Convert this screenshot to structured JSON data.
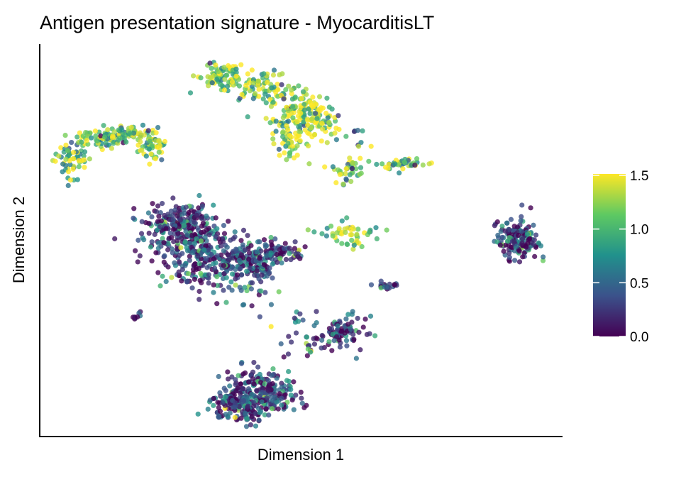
{
  "chart_data": {
    "type": "scatter",
    "title": "Antigen presentation signature - MyocarditisLT",
    "xlabel": "Dimension 1",
    "ylabel": "Dimension 2",
    "xlim": [
      -10,
      10
    ],
    "ylim": [
      -10,
      10
    ],
    "grid": false,
    "colorbar": {
      "colormap": "viridis",
      "range": [
        0,
        1.5
      ],
      "ticks": [
        "0.0",
        "0.5",
        "1.0",
        "1.5"
      ],
      "placement": "right",
      "colors": [
        "#440154",
        "#3b528b",
        "#21918c",
        "#5ec962",
        "#fde725"
      ]
    },
    "clusters": [
      {
        "x": -8.8,
        "y": 4.1,
        "sdx": 0.35,
        "sdy": 0.5,
        "n": 60,
        "mean": 1.1
      },
      {
        "x": -7.7,
        "y": 5.2,
        "sdx": 0.5,
        "sdy": 0.25,
        "n": 60,
        "mean": 1.1
      },
      {
        "x": -6.5,
        "y": 5.4,
        "sdx": 0.5,
        "sdy": 0.2,
        "n": 60,
        "mean": 1.1
      },
      {
        "x": -5.7,
        "y": 4.8,
        "sdx": 0.25,
        "sdy": 0.35,
        "n": 50,
        "mean": 1.2
      },
      {
        "x": -3.1,
        "y": 8.4,
        "sdx": 0.5,
        "sdy": 0.35,
        "n": 80,
        "mean": 1.2
      },
      {
        "x": -1.7,
        "y": 7.9,
        "sdx": 0.6,
        "sdy": 0.4,
        "n": 80,
        "mean": 1.2
      },
      {
        "x": -0.1,
        "y": 6.8,
        "sdx": 0.5,
        "sdy": 0.5,
        "n": 100,
        "mean": 1.3
      },
      {
        "x": -0.4,
        "y": 5.2,
        "sdx": 0.35,
        "sdy": 0.6,
        "n": 70,
        "mean": 1.1
      },
      {
        "x": 0.7,
        "y": 6.1,
        "sdx": 0.35,
        "sdy": 0.5,
        "n": 60,
        "mean": 1.3
      },
      {
        "x": 1.8,
        "y": 3.6,
        "sdx": 0.3,
        "sdy": 0.35,
        "n": 40,
        "mean": 1.1
      },
      {
        "x": 4.0,
        "y": 3.9,
        "sdx": 0.55,
        "sdy": 0.15,
        "n": 40,
        "mean": 1.0
      },
      {
        "x": 2.2,
        "y": 5.2,
        "sdx": 0.3,
        "sdy": 0.3,
        "n": 10,
        "mean": 0.8
      },
      {
        "x": -4.5,
        "y": -0.05,
        "sdx": 0.7,
        "sdy": 0.8,
        "n": 170,
        "mean": 0.3
      },
      {
        "x": -3.6,
        "y": -1.1,
        "sdx": 0.7,
        "sdy": 0.8,
        "n": 170,
        "mean": 0.3
      },
      {
        "x": -2.0,
        "y": -1.1,
        "sdx": 0.6,
        "sdy": 0.6,
        "n": 140,
        "mean": 0.35
      },
      {
        "x": -0.9,
        "y": -0.6,
        "sdx": 0.5,
        "sdy": 0.3,
        "n": 80,
        "mean": 0.3
      },
      {
        "x": -4.7,
        "y": 1.0,
        "sdx": 0.7,
        "sdy": 0.4,
        "n": 120,
        "mean": 0.25
      },
      {
        "x": -1.7,
        "y": -3.0,
        "sdx": 0.5,
        "sdy": 0.4,
        "n": 15,
        "mean": 0.5
      },
      {
        "x": -0.1,
        "y": -4.0,
        "sdx": 0.5,
        "sdy": 0.2,
        "n": 10,
        "mean": 0.4
      },
      {
        "x": 1.9,
        "y": 0.3,
        "sdx": 0.55,
        "sdy": 0.3,
        "n": 50,
        "mean": 1.1
      },
      {
        "x": 8.3,
        "y": 0.0,
        "sdx": 0.4,
        "sdy": 0.5,
        "n": 160,
        "mean": 0.3
      },
      {
        "x": 3.3,
        "y": -2.3,
        "sdx": 0.2,
        "sdy": 0.12,
        "n": 20,
        "mean": 0.4
      },
      {
        "x": -6.2,
        "y": -3.9,
        "sdx": 0.12,
        "sdy": 0.1,
        "n": 10,
        "mean": 0.2
      },
      {
        "x": -1.5,
        "y": -7.7,
        "sdx": 0.7,
        "sdy": 0.6,
        "n": 200,
        "mean": 0.3
      },
      {
        "x": -2.3,
        "y": -8.4,
        "sdx": 0.6,
        "sdy": 0.4,
        "n": 160,
        "mean": 0.3
      },
      {
        "x": 0.2,
        "y": -5.5,
        "sdx": 0.6,
        "sdy": 0.3,
        "n": 25,
        "mean": 0.4
      },
      {
        "x": 1.6,
        "y": -4.6,
        "sdx": 0.45,
        "sdy": 0.35,
        "n": 80,
        "mean": 0.2
      }
    ]
  }
}
